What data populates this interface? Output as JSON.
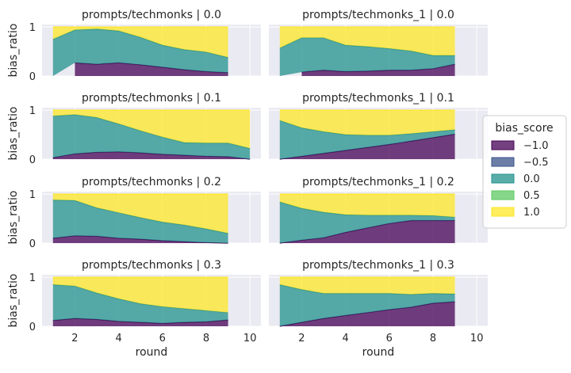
{
  "chart_data": {
    "type": "area",
    "subtype": "stacked proportions, faceted grid",
    "xlabel": "round",
    "ylabel": "bias_ratio",
    "xlim": [
      0.5,
      10.5
    ],
    "ylim": [
      0,
      1.05
    ],
    "xticks": [
      "2",
      "4",
      "6",
      "8",
      "10"
    ],
    "yticks": [
      "0",
      "1"
    ],
    "legend": {
      "title": "bias_score",
      "position": "center-right",
      "entries": [
        {
          "label": "−1.0",
          "color": "#440154"
        },
        {
          "label": "−0.5",
          "color": "#3b528b"
        },
        {
          "label": "0.0",
          "color": "#21918c"
        },
        {
          "label": "0.5",
          "color": "#5ec962"
        },
        {
          "label": "1.0",
          "color": "#fde725"
        }
      ]
    },
    "colors": {
      "neg1": "#440154",
      "neg05": "#3b528b",
      "zero": "#21918c",
      "pos05": "#5ec962",
      "pos1": "#fde725",
      "panel_bg": "#eaeaf2",
      "grid": "#ffffff"
    },
    "panels": [
      {
        "title": "prompts/techmonks | 0.0",
        "row": 0,
        "col": 0,
        "x": [
          1,
          2,
          3,
          4,
          5,
          6,
          7,
          8,
          9
        ],
        "neg1": [
          null,
          0.27,
          0.24,
          0.27,
          0.23,
          0.18,
          0.13,
          0.09,
          0.07
        ],
        "zero": [
          0.75,
          0.67,
          0.72,
          0.65,
          0.56,
          0.45,
          0.41,
          0.4,
          0.31
        ],
        "pos1": [
          0.25,
          0.06,
          0.04,
          0.08,
          0.21,
          0.37,
          0.46,
          0.51,
          0.62
        ]
      },
      {
        "title": "prompts/techmonks_1 | 0.0",
        "row": 0,
        "col": 1,
        "x": [
          1,
          2,
          3,
          4,
          5,
          6,
          7,
          8,
          9
        ],
        "neg1": [
          null,
          0.08,
          0.12,
          0.09,
          0.1,
          0.12,
          0.12,
          0.15,
          0.24
        ],
        "zero": [
          0.57,
          0.7,
          0.66,
          0.54,
          0.5,
          0.44,
          0.39,
          0.27,
          0.18
        ],
        "pos1": [
          0.43,
          0.22,
          0.22,
          0.37,
          0.4,
          0.44,
          0.49,
          0.58,
          0.58
        ]
      },
      {
        "title": "prompts/techmonks | 0.1",
        "row": 1,
        "col": 0,
        "x": [
          1,
          2,
          3,
          4,
          5,
          6,
          7,
          8,
          9,
          10
        ],
        "neg1": [
          0.03,
          0.11,
          0.14,
          0.15,
          0.13,
          0.1,
          0.08,
          0.06,
          0.05,
          0.0
        ],
        "zero": [
          0.85,
          0.8,
          0.71,
          0.57,
          0.45,
          0.35,
          0.26,
          0.27,
          0.28,
          0.22
        ],
        "pos1": [
          0.12,
          0.09,
          0.15,
          0.28,
          0.42,
          0.55,
          0.66,
          0.67,
          0.67,
          0.78
        ]
      },
      {
        "title": "prompts/techmonks_1 | 0.1",
        "row": 1,
        "col": 1,
        "x": [
          1,
          2,
          3,
          4,
          5,
          6,
          7,
          8,
          9
        ],
        "neg1": [
          0.0,
          0.06,
          0.12,
          0.18,
          0.24,
          0.3,
          0.37,
          0.44,
          0.51
        ],
        "zero": [
          0.79,
          0.58,
          0.44,
          0.32,
          0.25,
          0.19,
          0.15,
          0.12,
          0.09
        ],
        "pos1": [
          0.21,
          0.36,
          0.44,
          0.5,
          0.51,
          0.51,
          0.48,
          0.44,
          0.4
        ]
      },
      {
        "title": "prompts/techmonks | 0.2",
        "row": 2,
        "col": 0,
        "x": [
          1,
          2,
          3,
          4,
          5,
          6,
          7,
          8,
          9
        ],
        "neg1": [
          0.1,
          0.15,
          0.14,
          0.1,
          0.08,
          0.05,
          0.03,
          0.01,
          0.0
        ],
        "zero": [
          0.78,
          0.72,
          0.58,
          0.52,
          0.44,
          0.38,
          0.34,
          0.28,
          0.2
        ],
        "pos1": [
          0.12,
          0.13,
          0.28,
          0.38,
          0.48,
          0.57,
          0.63,
          0.71,
          0.8
        ]
      },
      {
        "title": "prompts/techmonks_1 | 0.2",
        "row": 2,
        "col": 1,
        "x": [
          1,
          2,
          3,
          4,
          5,
          6,
          7,
          8,
          9
        ],
        "neg1": [
          0.0,
          0.06,
          0.11,
          0.22,
          0.31,
          0.4,
          0.46,
          0.46,
          0.46
        ],
        "zero": [
          0.84,
          0.65,
          0.52,
          0.36,
          0.26,
          0.17,
          0.11,
          0.1,
          0.07
        ],
        "pos1": [
          0.16,
          0.29,
          0.37,
          0.42,
          0.43,
          0.43,
          0.43,
          0.44,
          0.47
        ]
      },
      {
        "title": "prompts/techmonks | 0.3",
        "row": 3,
        "col": 0,
        "x": [
          1,
          2,
          3,
          4,
          5,
          6,
          7,
          8,
          9
        ],
        "neg1": [
          0.12,
          0.16,
          0.14,
          0.1,
          0.08,
          0.06,
          0.08,
          0.09,
          0.13
        ],
        "zero": [
          0.73,
          0.66,
          0.54,
          0.46,
          0.38,
          0.34,
          0.28,
          0.23,
          0.15
        ],
        "pos1": [
          0.15,
          0.18,
          0.32,
          0.44,
          0.54,
          0.6,
          0.64,
          0.68,
          0.72
        ]
      },
      {
        "title": "prompts/techmonks_1 | 0.3",
        "row": 3,
        "col": 1,
        "x": [
          1,
          2,
          3,
          4,
          5,
          6,
          7,
          8,
          9
        ],
        "neg1": [
          0.0,
          0.08,
          0.16,
          0.22,
          0.28,
          0.34,
          0.39,
          0.47,
          0.5
        ],
        "zero": [
          0.85,
          0.67,
          0.51,
          0.45,
          0.39,
          0.33,
          0.26,
          0.2,
          0.16
        ],
        "pos1": [
          0.15,
          0.25,
          0.33,
          0.33,
          0.33,
          0.33,
          0.35,
          0.33,
          0.34
        ]
      }
    ]
  }
}
